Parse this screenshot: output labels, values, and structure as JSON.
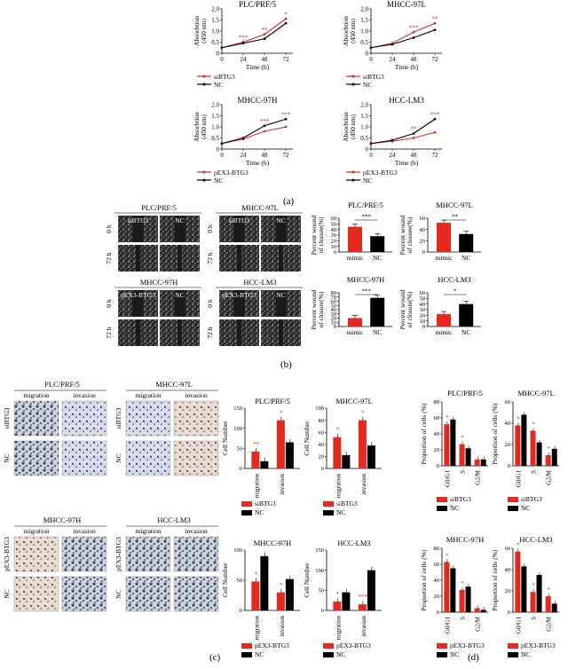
{
  "colors": {
    "red": "#e8281e",
    "black": "#000000",
    "axis": "#000000"
  },
  "captions": {
    "a": "(a)",
    "b": "(b)",
    "c": "(c)",
    "d": "(d)"
  },
  "panel_a": {
    "ylabel1": "Absorbtion",
    "ylabel2": "(450 nm)",
    "xlabel": "Time (h)",
    "charts": [
      {
        "title": "PLC/PRF/5",
        "x": [
          0,
          24,
          48,
          72
        ],
        "ylim": [
          0,
          2.0
        ],
        "series": [
          {
            "name": "siBTG3",
            "color": "red",
            "values": [
              0.25,
              0.5,
              0.85,
              1.55
            ]
          },
          {
            "name": "NC",
            "color": "black",
            "values": [
              0.25,
              0.45,
              0.65,
              1.35
            ]
          }
        ],
        "stars": [
          "***",
          "**",
          "*"
        ]
      },
      {
        "title": "MHCC-97L",
        "x": [
          0,
          24,
          48,
          72
        ],
        "ylim": [
          0,
          2.0
        ],
        "series": [
          {
            "name": "siBTG3",
            "color": "red",
            "values": [
              0.25,
              0.45,
              0.95,
              1.35
            ]
          },
          {
            "name": "NC",
            "color": "black",
            "values": [
              0.25,
              0.4,
              0.7,
              1.05
            ]
          }
        ],
        "stars": [
          "***",
          "**"
        ]
      },
      {
        "title": "MHCC-97H",
        "x": [
          0,
          24,
          48,
          72
        ],
        "ylim": [
          0,
          2.0
        ],
        "series": [
          {
            "name": "pEX3-BTG3",
            "color": "red",
            "values": [
              0.25,
              0.45,
              0.8,
              1.0
            ]
          },
          {
            "name": "NC",
            "color": "black",
            "values": [
              0.25,
              0.5,
              1.05,
              1.35
            ]
          }
        ],
        "stars": [
          "***",
          "***"
        ]
      },
      {
        "title": "HCC-LM3",
        "x": [
          0,
          24,
          48,
          72
        ],
        "ylim": [
          0,
          2.0
        ],
        "series": [
          {
            "name": "pEX3-BTG3",
            "color": "red",
            "values": [
              0.25,
              0.35,
              0.5,
              0.75
            ]
          },
          {
            "name": "NC",
            "color": "black",
            "values": [
              0.25,
              0.4,
              0.7,
              1.35
            ]
          }
        ],
        "stars": [
          "**",
          "***"
        ]
      }
    ],
    "legend_top": {
      "red": "siBTG3",
      "black": "NC"
    },
    "legend_bottom": {
      "red": "pEX3-BTG3",
      "black": "NC"
    },
    "ticks_y": [
      "0",
      "0.5",
      "1.0",
      "1.5",
      "2.0"
    ],
    "ticks_x": [
      "0",
      "24",
      "48",
      "72"
    ]
  },
  "panel_b": {
    "image_groups": [
      {
        "title": "PLC/PRF/5",
        "col1": "siBTG3",
        "col2": "NC",
        "rows": [
          "0 h",
          "72 h"
        ]
      },
      {
        "title": "MHCC-97L",
        "col1": "siBTG3",
        "col2": "NC",
        "rows": [
          "0 h",
          "72 h"
        ]
      },
      {
        "title": "MHCC-97H",
        "col1": "pEX3-BTG3",
        "col2": "NC",
        "rows": [
          "0 h",
          "72 h"
        ]
      },
      {
        "title": "HCC-LM3",
        "col1": "pEX3-BTG3",
        "col2": "NC",
        "rows": [
          "0 h",
          "72 h"
        ]
      }
    ],
    "ylabel1": "Percent wound",
    "ylabel2": "of closure(%)",
    "charts": [
      {
        "title": "PLC/PRF/5",
        "categories": [
          "mimic",
          "NC"
        ],
        "values": [
          45,
          28
        ],
        "ylim": [
          0,
          60
        ],
        "ticks": [
          "0",
          "10",
          "20",
          "30",
          "40",
          "50",
          "60"
        ],
        "star": "***"
      },
      {
        "title": "MHCC-97L",
        "categories": [
          "mimic",
          "NC"
        ],
        "values": [
          52,
          32
        ],
        "ylim": [
          0,
          60
        ],
        "ticks": [
          "0",
          "20",
          "40",
          "60"
        ],
        "star": "**"
      },
      {
        "title": "MHCC-97H",
        "categories": [
          "mimic",
          "NC"
        ],
        "values": [
          20,
          68
        ],
        "ylim": [
          0,
          80
        ],
        "ticks": [
          "0",
          "10",
          "20",
          "30",
          "40",
          "50",
          "60",
          "70",
          "80"
        ],
        "star": "***"
      },
      {
        "title": "HCC-LM3",
        "categories": [
          "mimic",
          "NC"
        ],
        "values": [
          22,
          40
        ],
        "ylim": [
          0,
          60
        ],
        "ticks": [
          "0",
          "10",
          "20",
          "30",
          "40",
          "50",
          "60"
        ],
        "star": "*"
      }
    ]
  },
  "panel_c": {
    "image_groups": [
      {
        "title": "PLC/PRF/5",
        "col1": "migration",
        "col2": "invasion",
        "rows": [
          "siBTG3",
          "NC"
        ]
      },
      {
        "title": "MHCC-97L",
        "col1": "migration",
        "col2": "invasion",
        "rows": [
          "siBTG3",
          "NC"
        ]
      },
      {
        "title": "MHCC-97H",
        "col1": "migration",
        "col2": "invasion",
        "rows": [
          "pEX3-BTG3",
          "NC"
        ]
      },
      {
        "title": "HCC-LM3",
        "col1": "migration",
        "col2": "invasion",
        "rows": [
          "pEX3-BTG3",
          "NC"
        ]
      }
    ],
    "ylabel": "Cell Number",
    "charts": [
      {
        "title": "PLC/PRF/5",
        "categories": [
          "migration",
          "invasion"
        ],
        "ylim": [
          0,
          150
        ],
        "ticks": [
          "0",
          "50",
          "100",
          "150"
        ],
        "series": [
          {
            "name": "siBTG3",
            "color": "red",
            "values": [
              42,
              120
            ]
          },
          {
            "name": "NC",
            "color": "black",
            "values": [
              18,
              65
            ]
          }
        ],
        "stars": [
          "**",
          "*"
        ]
      },
      {
        "title": "MHCC-97L",
        "categories": [
          "migration",
          "invasion"
        ],
        "ylim": [
          0,
          100
        ],
        "ticks": [
          "0",
          "20",
          "40",
          "60",
          "80",
          "100"
        ],
        "series": [
          {
            "name": "siBTG3",
            "color": "red",
            "values": [
              52,
              80
            ]
          },
          {
            "name": "NC",
            "color": "black",
            "values": [
              22,
              38
            ]
          }
        ],
        "stars": [
          "*",
          "*"
        ]
      },
      {
        "title": "MHCC-97H",
        "categories": [
          "migration",
          "invasion"
        ],
        "ylim": [
          0,
          100
        ],
        "ticks": [
          "0",
          "50",
          "100"
        ],
        "series": [
          {
            "name": "pEX3-BTG3",
            "color": "red",
            "values": [
              48,
              30
            ]
          },
          {
            "name": "NC",
            "color": "black",
            "values": [
              90,
              52
            ]
          }
        ],
        "stars": [
          "*",
          "*"
        ]
      },
      {
        "title": "HCC-LM3",
        "categories": [
          "migration",
          "invasion"
        ],
        "ylim": [
          0,
          150
        ],
        "ticks": [
          "0",
          "50",
          "100",
          "150"
        ],
        "series": [
          {
            "name": "pEX3-BTG3",
            "color": "red",
            "values": [
              22,
              15
            ]
          },
          {
            "name": "NC",
            "color": "black",
            "values": [
              45,
              100
            ]
          }
        ],
        "stars": [
          "*",
          "***"
        ]
      }
    ],
    "legend_top": {
      "red": "siBTG3",
      "black": "NC"
    },
    "legend_bottom": {
      "red": "pEX3-BTG3",
      "black": "NC"
    }
  },
  "panel_d": {
    "ylabel": "Proportion of cells (%)",
    "charts": [
      {
        "title": "PLC/PRF/5",
        "categories": [
          "G0/G1",
          "S",
          "G2/M"
        ],
        "ylim": [
          0,
          80
        ],
        "ticks": [
          "0",
          "20",
          "40",
          "60",
          "80"
        ],
        "series": [
          {
            "name": "siBTG3",
            "color": "red",
            "values": [
              52,
              27,
              8
            ]
          },
          {
            "name": "NC",
            "color": "black",
            "values": [
              58,
              22,
              8
            ]
          }
        ],
        "stars": [
          "*",
          "*"
        ]
      },
      {
        "title": "MHCC-97L",
        "categories": [
          "G0/G1",
          "S",
          "G2/M"
        ],
        "ylim": [
          0,
          60
        ],
        "ticks": [
          "0",
          "20",
          "40",
          "60"
        ],
        "series": [
          {
            "name": "siBTG3",
            "color": "red",
            "values": [
              38,
              33,
              10
            ]
          },
          {
            "name": "NC",
            "color": "black",
            "values": [
              48,
              22,
              16
            ]
          }
        ],
        "stars": [
          "*",
          "*",
          "*"
        ]
      },
      {
        "title": "MHCC-97H",
        "categories": [
          "G0/G1",
          "S",
          "G2/M"
        ],
        "ylim": [
          0,
          80
        ],
        "ticks": [
          "0",
          "20",
          "40",
          "60",
          "80"
        ],
        "series": [
          {
            "name": "pEX3-BTG3",
            "color": "red",
            "values": [
              63,
              28,
              5
            ]
          },
          {
            "name": "NC",
            "color": "black",
            "values": [
              55,
              32,
              3
            ]
          }
        ],
        "stars": [
          "*",
          "*"
        ]
      },
      {
        "title": "HCC-LM3",
        "categories": [
          "G0/G1",
          "S",
          "G2/M"
        ],
        "ylim": [
          0,
          60
        ],
        "ticks": [
          "0",
          "20",
          "40",
          "60"
        ],
        "series": [
          {
            "name": "pEX3-BTG3",
            "color": "red",
            "values": [
              57,
              19,
              15
            ]
          },
          {
            "name": "NC",
            "color": "black",
            "values": [
              43,
              35,
              8
            ]
          }
        ],
        "stars": [
          "*",
          "*",
          "*"
        ]
      }
    ],
    "legend_top": {
      "red": "siBTG3",
      "black": "NC"
    },
    "legend_bottom": {
      "red": "pEX3-BTG3",
      "black": "NC"
    }
  },
  "chart_data": [
    {
      "type": "line",
      "title": "PLC/PRF/5",
      "xlabel": "Time (h)",
      "ylabel": "Absorbtion (450 nm)",
      "x": [
        0,
        24,
        48,
        72
      ],
      "ylim": [
        0,
        2.0
      ],
      "series": [
        {
          "name": "siBTG3",
          "values": [
            0.25,
            0.5,
            0.85,
            1.55
          ]
        },
        {
          "name": "NC",
          "values": [
            0.25,
            0.45,
            0.65,
            1.35
          ]
        }
      ]
    },
    {
      "type": "line",
      "title": "MHCC-97L",
      "xlabel": "Time (h)",
      "ylabel": "Absorbtion (450 nm)",
      "x": [
        0,
        24,
        48,
        72
      ],
      "ylim": [
        0,
        2.0
      ],
      "series": [
        {
          "name": "siBTG3",
          "values": [
            0.25,
            0.45,
            0.95,
            1.35
          ]
        },
        {
          "name": "NC",
          "values": [
            0.25,
            0.4,
            0.7,
            1.05
          ]
        }
      ]
    },
    {
      "type": "line",
      "title": "MHCC-97H",
      "xlabel": "Time (h)",
      "ylabel": "Absorbtion (450 nm)",
      "x": [
        0,
        24,
        48,
        72
      ],
      "ylim": [
        0,
        2.0
      ],
      "series": [
        {
          "name": "pEX3-BTG3",
          "values": [
            0.25,
            0.45,
            0.8,
            1.0
          ]
        },
        {
          "name": "NC",
          "values": [
            0.25,
            0.5,
            1.05,
            1.35
          ]
        }
      ]
    },
    {
      "type": "line",
      "title": "HCC-LM3",
      "xlabel": "Time (h)",
      "ylabel": "Absorbtion (450 nm)",
      "x": [
        0,
        24,
        48,
        72
      ],
      "ylim": [
        0,
        2.0
      ],
      "series": [
        {
          "name": "pEX3-BTG3",
          "values": [
            0.25,
            0.35,
            0.5,
            0.75
          ]
        },
        {
          "name": "NC",
          "values": [
            0.25,
            0.4,
            0.7,
            1.35
          ]
        }
      ]
    },
    {
      "type": "bar",
      "title": "PLC/PRF/5",
      "ylabel": "Percent wound of closure(%)",
      "categories": [
        "mimic",
        "NC"
      ],
      "values": [
        45,
        28
      ],
      "ylim": [
        0,
        60
      ]
    },
    {
      "type": "bar",
      "title": "MHCC-97L",
      "ylabel": "Percent wound of closure(%)",
      "categories": [
        "mimic",
        "NC"
      ],
      "values": [
        52,
        32
      ],
      "ylim": [
        0,
        60
      ]
    },
    {
      "type": "bar",
      "title": "MHCC-97H",
      "ylabel": "Percent wound of closure(%)",
      "categories": [
        "mimic",
        "NC"
      ],
      "values": [
        20,
        68
      ],
      "ylim": [
        0,
        80
      ]
    },
    {
      "type": "bar",
      "title": "HCC-LM3",
      "ylabel": "Percent wound of closure(%)",
      "categories": [
        "mimic",
        "NC"
      ],
      "values": [
        22,
        40
      ],
      "ylim": [
        0,
        60
      ]
    },
    {
      "type": "bar",
      "title": "PLC/PRF/5",
      "ylabel": "Cell Number",
      "categories": [
        "migration",
        "invasion"
      ],
      "ylim": [
        0,
        150
      ],
      "series": [
        {
          "name": "siBTG3",
          "values": [
            42,
            120
          ]
        },
        {
          "name": "NC",
          "values": [
            18,
            65
          ]
        }
      ]
    },
    {
      "type": "bar",
      "title": "MHCC-97L",
      "ylabel": "Cell Number",
      "categories": [
        "migration",
        "invasion"
      ],
      "ylim": [
        0,
        100
      ],
      "series": [
        {
          "name": "siBTG3",
          "values": [
            52,
            80
          ]
        },
        {
          "name": "NC",
          "values": [
            22,
            38
          ]
        }
      ]
    },
    {
      "type": "bar",
      "title": "MHCC-97H",
      "ylabel": "Cell Number",
      "categories": [
        "migration",
        "invasion"
      ],
      "ylim": [
        0,
        100
      ],
      "series": [
        {
          "name": "pEX3-BTG3",
          "values": [
            48,
            30
          ]
        },
        {
          "name": "NC",
          "values": [
            90,
            52
          ]
        }
      ]
    },
    {
      "type": "bar",
      "title": "HCC-LM3",
      "ylabel": "Cell Number",
      "categories": [
        "migration",
        "invasion"
      ],
      "ylim": [
        0,
        150
      ],
      "series": [
        {
          "name": "pEX3-BTG3",
          "values": [
            22,
            15
          ]
        },
        {
          "name": "NC",
          "values": [
            45,
            100
          ]
        }
      ]
    },
    {
      "type": "bar",
      "title": "PLC/PRF/5",
      "ylabel": "Proportion of cells (%)",
      "categories": [
        "G0/G1",
        "S",
        "G2/M"
      ],
      "ylim": [
        0,
        80
      ],
      "series": [
        {
          "name": "siBTG3",
          "values": [
            52,
            27,
            8
          ]
        },
        {
          "name": "NC",
          "values": [
            58,
            22,
            8
          ]
        }
      ]
    },
    {
      "type": "bar",
      "title": "MHCC-97L",
      "ylabel": "Proportion of cells (%)",
      "categories": [
        "G0/G1",
        "S",
        "G2/M"
      ],
      "ylim": [
        0,
        60
      ],
      "series": [
        {
          "name": "siBTG3",
          "values": [
            38,
            33,
            10
          ]
        },
        {
          "name": "NC",
          "values": [
            48,
            22,
            16
          ]
        }
      ]
    },
    {
      "type": "bar",
      "title": "MHCC-97H",
      "ylabel": "Proportion of cells (%)",
      "categories": [
        "G0/G1",
        "S",
        "G2/M"
      ],
      "ylim": [
        0,
        80
      ],
      "series": [
        {
          "name": "pEX3-BTG3",
          "values": [
            63,
            28,
            5
          ]
        },
        {
          "name": "NC",
          "values": [
            55,
            32,
            3
          ]
        }
      ]
    },
    {
      "type": "bar",
      "title": "HCC-LM3",
      "ylabel": "Proportion of cells (%)",
      "categories": [
        "G0/G1",
        "S",
        "G2/M"
      ],
      "ylim": [
        0,
        60
      ],
      "series": [
        {
          "name": "pEX3-BTG3",
          "values": [
            57,
            19,
            15
          ]
        },
        {
          "name": "NC",
          "values": [
            43,
            35,
            8
          ]
        }
      ]
    }
  ]
}
